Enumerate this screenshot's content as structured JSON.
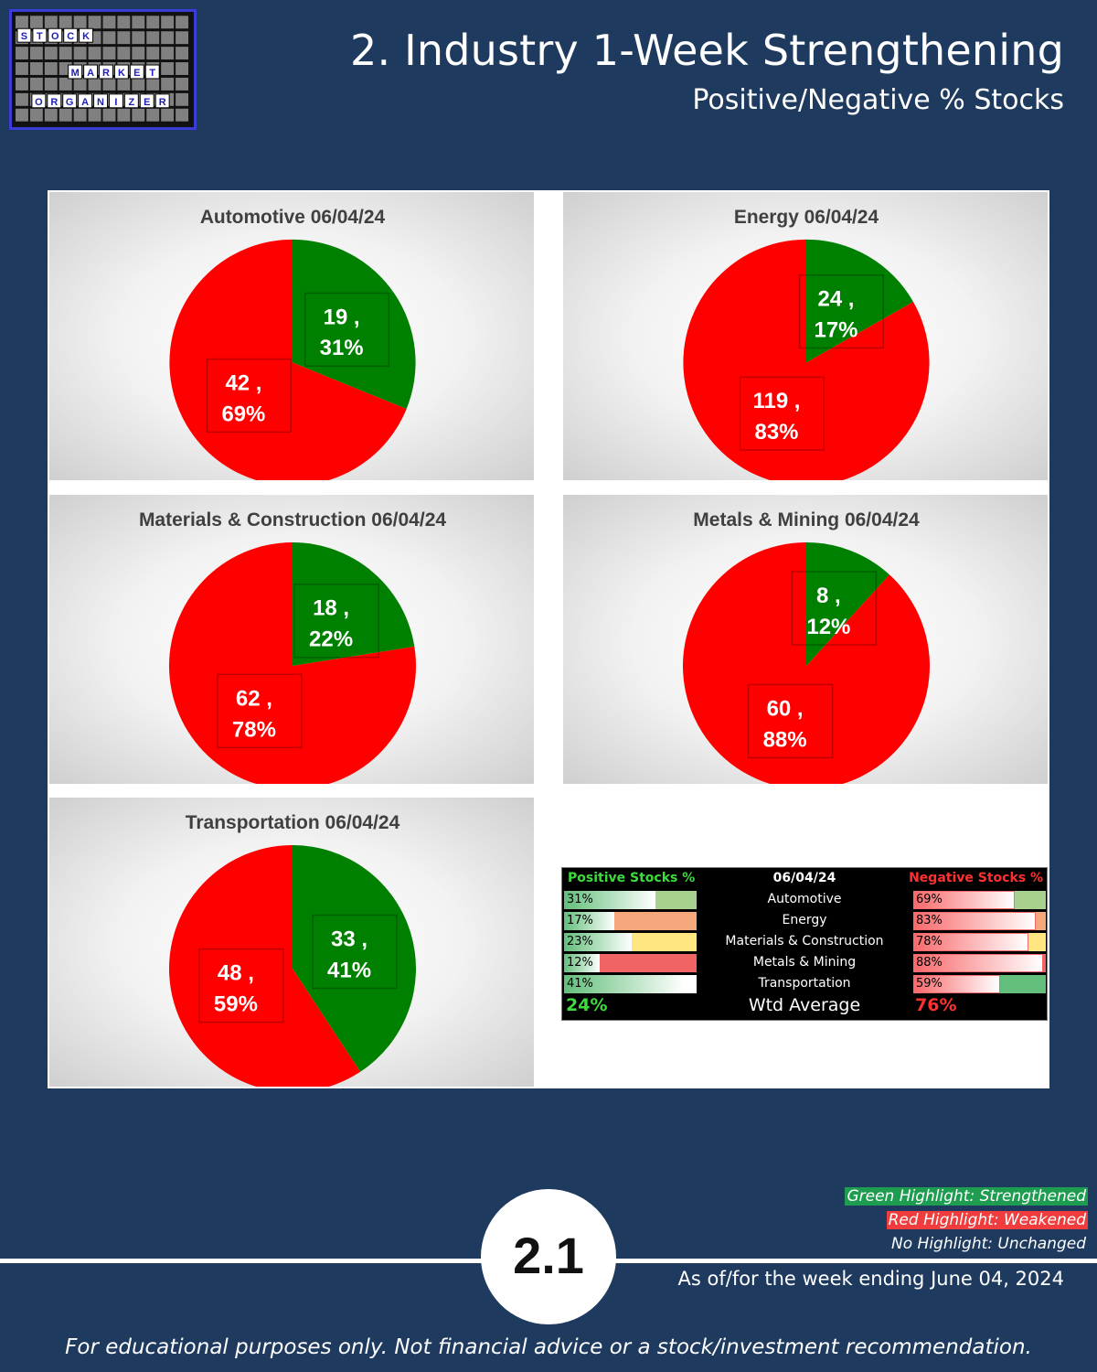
{
  "logo": {
    "line1": "STOCK",
    "line2": "MARKET",
    "line3": "ORGANIZER"
  },
  "header": {
    "title": "2. Industry 1-Week Strengthening",
    "subtitle": "Positive/Negative % Stocks"
  },
  "colors": {
    "positive": "#008000",
    "negative": "#ff0000",
    "background": "#1e3a5f"
  },
  "chart_data": [
    {
      "type": "pie",
      "title": "Automotive 06/04/24",
      "slices": [
        {
          "label": "19 ,",
          "pct": "31%",
          "value": 19,
          "color": "#008000"
        },
        {
          "label": "42 ,",
          "pct": "69%",
          "value": 42,
          "color": "#ff0000"
        }
      ]
    },
    {
      "type": "pie",
      "title": "Energy 06/04/24",
      "slices": [
        {
          "label": "24 ,",
          "pct": "17%",
          "value": 24,
          "color": "#008000"
        },
        {
          "label": "119 ,",
          "pct": "83%",
          "value": 119,
          "color": "#ff0000"
        }
      ]
    },
    {
      "type": "pie",
      "title": "Materials & Construction 06/04/24",
      "slices": [
        {
          "label": "18 ,",
          "pct": "22%",
          "value": 18,
          "color": "#008000"
        },
        {
          "label": "62 ,",
          "pct": "78%",
          "value": 62,
          "color": "#ff0000"
        }
      ]
    },
    {
      "type": "pie",
      "title": "Metals & Mining 06/04/24",
      "slices": [
        {
          "label": "8 ,",
          "pct": "12%",
          "value": 8,
          "color": "#008000"
        },
        {
          "label": "60 ,",
          "pct": "88%",
          "value": 60,
          "color": "#ff0000"
        }
      ]
    },
    {
      "type": "pie",
      "title": "Transportation 06/04/24",
      "slices": [
        {
          "label": "33 ,",
          "pct": "41%",
          "value": 33,
          "color": "#008000"
        },
        {
          "label": "48 ,",
          "pct": "59%",
          "value": 48,
          "color": "#ff0000"
        }
      ]
    }
  ],
  "summary": {
    "pos_header": "Positive Stocks %",
    "date_header": "06/04/24",
    "neg_header": "Negative Stocks %",
    "rows": [
      {
        "name": "Automotive",
        "pos": "31%",
        "pos_val": 31,
        "pos_highlight": "#a9d18e",
        "neg": "69%",
        "neg_val": 69,
        "neg_highlight": "#a9d18e"
      },
      {
        "name": "Energy",
        "pos": "17%",
        "pos_val": 17,
        "pos_highlight": "#f4a77b",
        "neg": "83%",
        "neg_val": 83,
        "neg_highlight": "#f4a77b"
      },
      {
        "name": "Materials & Construction",
        "pos": "23%",
        "pos_val": 23,
        "pos_highlight": "#ffe680",
        "neg": "78%",
        "neg_val": 78,
        "neg_highlight": "#ffe680"
      },
      {
        "name": "Metals & Mining",
        "pos": "12%",
        "pos_val": 12,
        "pos_highlight": "#f06464",
        "neg": "88%",
        "neg_val": 88,
        "neg_highlight": "#f06464"
      },
      {
        "name": "Transportation",
        "pos": "41%",
        "pos_val": 41,
        "pos_highlight": "#ffffff",
        "neg": "59%",
        "neg_val": 59,
        "neg_highlight": "#63be7b"
      }
    ],
    "wtd_pos": "24%",
    "wtd_label": "Wtd Average",
    "wtd_neg": "76%"
  },
  "legend": {
    "green": "Green Highlight: Strengthened",
    "red": "Red Highlight: Weakened",
    "none": "No Highlight: Unchanged"
  },
  "footer": {
    "page_number": "2.1",
    "as_of": "As of/for the week ending June 04, 2024",
    "disclaimer": "For educational purposes only. Not financial advice or a stock/investment recommendation."
  }
}
